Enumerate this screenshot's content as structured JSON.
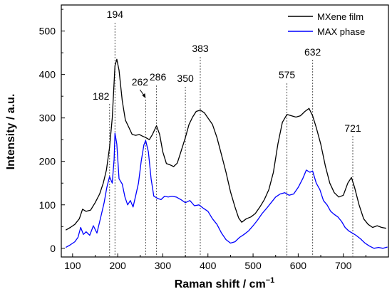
{
  "chart_data": {
    "type": "line",
    "xlabel": "Raman shift / cm",
    "xlabel_sup": "−1",
    "ylabel": "Intensity / a.u.",
    "xlim": [
      75,
      800
    ],
    "ylim": [
      -20,
      560
    ],
    "xticks": [
      "100",
      "200",
      "300",
      "400",
      "500",
      "600",
      "700"
    ],
    "yticks": [
      "0",
      "100",
      "200",
      "300",
      "400",
      "500"
    ],
    "legend_position": "top-right",
    "series": [
      {
        "name": "MXene film",
        "color": "#000000",
        "points": [
          [
            85,
            42
          ],
          [
            95,
            48
          ],
          [
            105,
            55
          ],
          [
            115,
            68
          ],
          [
            122,
            90
          ],
          [
            130,
            85
          ],
          [
            140,
            88
          ],
          [
            150,
            105
          ],
          [
            160,
            125
          ],
          [
            168,
            150
          ],
          [
            175,
            180
          ],
          [
            182,
            232
          ],
          [
            188,
            300
          ],
          [
            194,
            420
          ],
          [
            198,
            435
          ],
          [
            203,
            410
          ],
          [
            210,
            340
          ],
          [
            217,
            295
          ],
          [
            224,
            280
          ],
          [
            232,
            262
          ],
          [
            240,
            260
          ],
          [
            248,
            262
          ],
          [
            255,
            258
          ],
          [
            262,
            255
          ],
          [
            270,
            250
          ],
          [
            277,
            262
          ],
          [
            286,
            282
          ],
          [
            293,
            262
          ],
          [
            300,
            222
          ],
          [
            308,
            195
          ],
          [
            316,
            192
          ],
          [
            324,
            188
          ],
          [
            332,
            196
          ],
          [
            340,
            222
          ],
          [
            350,
            255
          ],
          [
            358,
            285
          ],
          [
            366,
            302
          ],
          [
            374,
            315
          ],
          [
            383,
            318
          ],
          [
            392,
            312
          ],
          [
            400,
            300
          ],
          [
            410,
            285
          ],
          [
            420,
            255
          ],
          [
            430,
            215
          ],
          [
            440,
            175
          ],
          [
            450,
            130
          ],
          [
            460,
            95
          ],
          [
            468,
            70
          ],
          [
            475,
            60
          ],
          [
            485,
            68
          ],
          [
            495,
            72
          ],
          [
            505,
            80
          ],
          [
            515,
            95
          ],
          [
            525,
            112
          ],
          [
            535,
            135
          ],
          [
            545,
            175
          ],
          [
            555,
            240
          ],
          [
            565,
            290
          ],
          [
            575,
            308
          ],
          [
            585,
            305
          ],
          [
            595,
            302
          ],
          [
            605,
            305
          ],
          [
            615,
            315
          ],
          [
            624,
            322
          ],
          [
            632,
            305
          ],
          [
            640,
            278
          ],
          [
            650,
            240
          ],
          [
            660,
            190
          ],
          [
            670,
            150
          ],
          [
            680,
            128
          ],
          [
            690,
            118
          ],
          [
            700,
            122
          ],
          [
            710,
            150
          ],
          [
            718,
            163
          ],
          [
            725,
            140
          ],
          [
            735,
            100
          ],
          [
            745,
            68
          ],
          [
            755,
            55
          ],
          [
            765,
            48
          ],
          [
            775,
            52
          ],
          [
            785,
            48
          ],
          [
            795,
            46
          ]
        ]
      },
      {
        "name": "MAX phase",
        "color": "#0000ff",
        "points": [
          [
            85,
            2
          ],
          [
            95,
            8
          ],
          [
            105,
            15
          ],
          [
            112,
            25
          ],
          [
            118,
            48
          ],
          [
            124,
            32
          ],
          [
            130,
            38
          ],
          [
            138,
            30
          ],
          [
            146,
            52
          ],
          [
            154,
            35
          ],
          [
            162,
            70
          ],
          [
            170,
            105
          ],
          [
            176,
            140
          ],
          [
            182,
            165
          ],
          [
            188,
            150
          ],
          [
            192,
            205
          ],
          [
            194,
            265
          ],
          [
            198,
            240
          ],
          [
            203,
            160
          ],
          [
            210,
            148
          ],
          [
            216,
            118
          ],
          [
            222,
            100
          ],
          [
            228,
            110
          ],
          [
            234,
            95
          ],
          [
            240,
            122
          ],
          [
            246,
            150
          ],
          [
            252,
            200
          ],
          [
            258,
            238
          ],
          [
            262,
            248
          ],
          [
            268,
            222
          ],
          [
            274,
            160
          ],
          [
            280,
            120
          ],
          [
            288,
            115
          ],
          [
            296,
            112
          ],
          [
            304,
            120
          ],
          [
            312,
            118
          ],
          [
            320,
            120
          ],
          [
            330,
            118
          ],
          [
            340,
            112
          ],
          [
            350,
            105
          ],
          [
            360,
            110
          ],
          [
            370,
            98
          ],
          [
            380,
            100
          ],
          [
            390,
            92
          ],
          [
            400,
            85
          ],
          [
            410,
            68
          ],
          [
            420,
            55
          ],
          [
            430,
            35
          ],
          [
            440,
            20
          ],
          [
            450,
            12
          ],
          [
            460,
            15
          ],
          [
            470,
            25
          ],
          [
            480,
            32
          ],
          [
            490,
            40
          ],
          [
            500,
            52
          ],
          [
            510,
            65
          ],
          [
            520,
            80
          ],
          [
            530,
            92
          ],
          [
            540,
            105
          ],
          [
            550,
            118
          ],
          [
            560,
            125
          ],
          [
            570,
            128
          ],
          [
            580,
            122
          ],
          [
            590,
            125
          ],
          [
            600,
            140
          ],
          [
            610,
            160
          ],
          [
            618,
            180
          ],
          [
            626,
            175
          ],
          [
            632,
            178
          ],
          [
            640,
            150
          ],
          [
            648,
            135
          ],
          [
            656,
            110
          ],
          [
            664,
            100
          ],
          [
            672,
            85
          ],
          [
            680,
            78
          ],
          [
            688,
            72
          ],
          [
            696,
            62
          ],
          [
            704,
            48
          ],
          [
            712,
            40
          ],
          [
            720,
            35
          ],
          [
            728,
            30
          ],
          [
            738,
            22
          ],
          [
            748,
            12
          ],
          [
            758,
            5
          ],
          [
            768,
            0
          ],
          [
            778,
            2
          ],
          [
            788,
            0
          ],
          [
            798,
            3
          ]
        ]
      }
    ],
    "peak_labels": [
      {
        "label": "182",
        "x": 182
      },
      {
        "label": "194",
        "x": 194
      },
      {
        "label": "262",
        "x": 262
      },
      {
        "label": "286",
        "x": 286
      },
      {
        "label": "350",
        "x": 350
      },
      {
        "label": "383",
        "x": 383
      },
      {
        "label": "575",
        "x": 575
      },
      {
        "label": "632",
        "x": 632
      },
      {
        "label": "721",
        "x": 721
      }
    ]
  }
}
